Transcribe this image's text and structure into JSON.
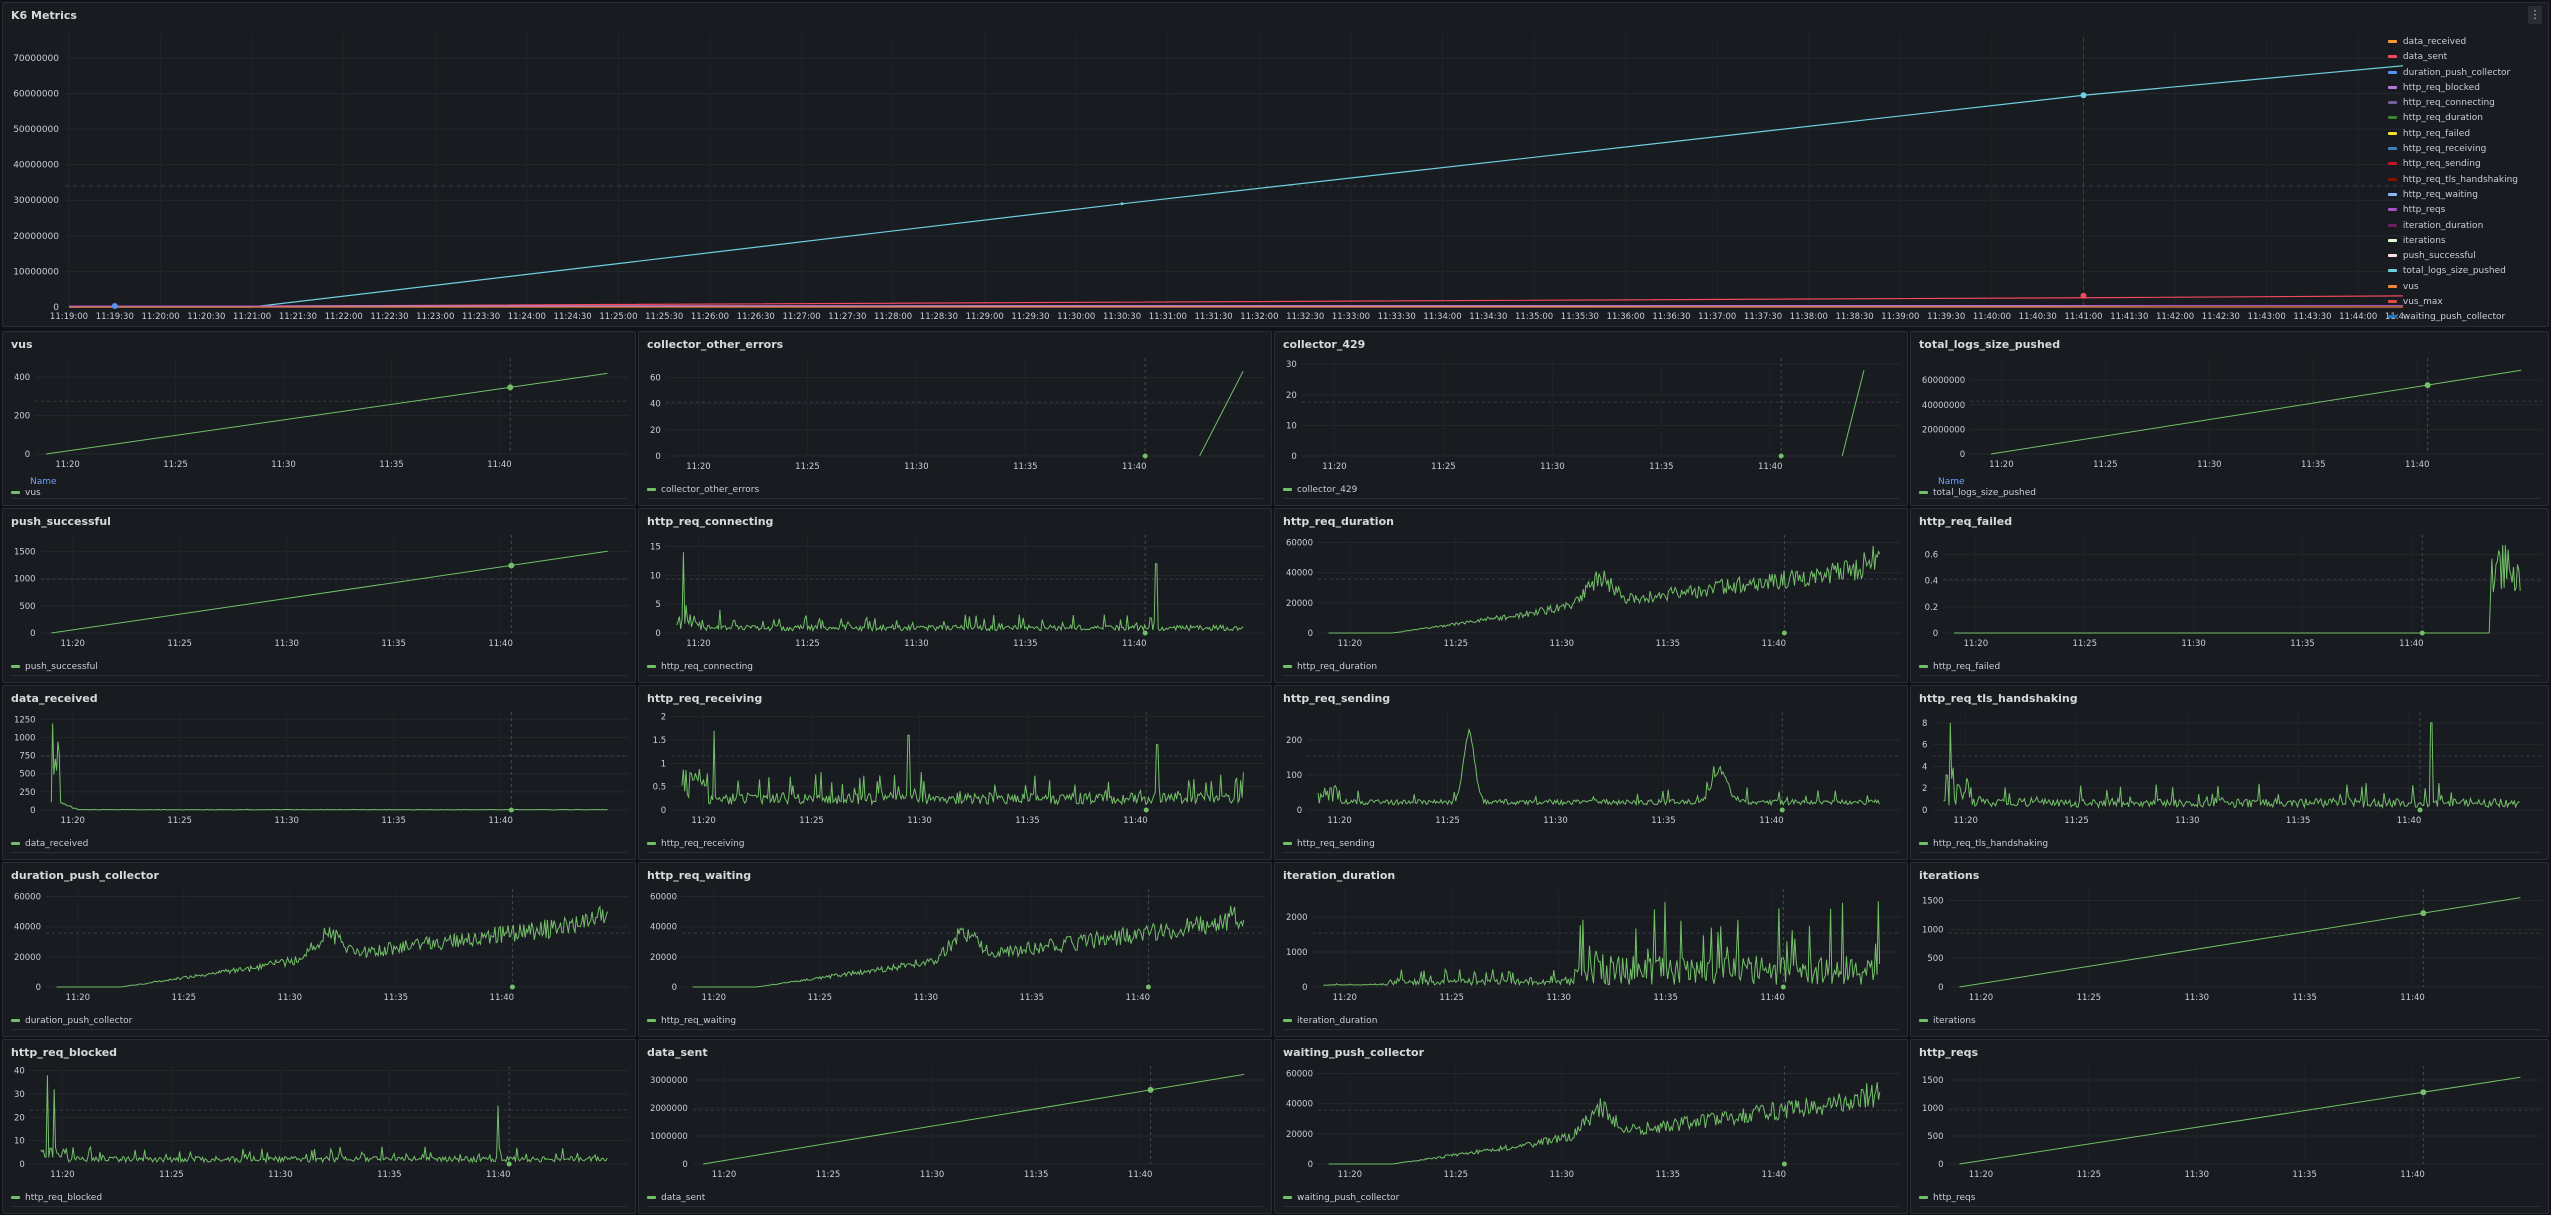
{
  "dashboard": {
    "main_panel": {
      "title": "K6 Metrics",
      "menu_icon": "ellipsis-vertical-icon",
      "legend": [
        {
          "name": "data_received",
          "color": "#ff9830"
        },
        {
          "name": "data_sent",
          "color": "#f2495c"
        },
        {
          "name": "duration_push_collector",
          "color": "#5794f2"
        },
        {
          "name": "http_req_blocked",
          "color": "#b877d9"
        },
        {
          "name": "http_req_connecting",
          "color": "#705da0"
        },
        {
          "name": "http_req_duration",
          "color": "#37872d"
        },
        {
          "name": "http_req_failed",
          "color": "#fade2a"
        },
        {
          "name": "http_req_receiving",
          "color": "#447ebc"
        },
        {
          "name": "http_req_sending",
          "color": "#c4162a"
        },
        {
          "name": "http_req_tls_handshaking",
          "color": "#890f02"
        },
        {
          "name": "http_req_waiting",
          "color": "#8ab8ff"
        },
        {
          "name": "http_reqs",
          "color": "#a352cc"
        },
        {
          "name": "iteration_duration",
          "color": "#6d1f62"
        },
        {
          "name": "iterations",
          "color": "#e0f9d7"
        },
        {
          "name": "push_successful",
          "color": "#fce2de"
        },
        {
          "name": "total_logs_size_pushed",
          "color": "#6ed0e0"
        },
        {
          "name": "vus",
          "color": "#ef843c"
        },
        {
          "name": "vus_max",
          "color": "#e24d42"
        },
        {
          "name": "waiting_push_collector",
          "color": "#1f78c1"
        }
      ]
    },
    "panels": [
      {
        "title": "vus",
        "legend": "vus",
        "show_name_header": true,
        "name_header": "Name"
      },
      {
        "title": "collector_other_errors",
        "legend": "collector_other_errors",
        "show_name_header": false
      },
      {
        "title": "collector_429",
        "legend": "collector_429",
        "show_name_header": false
      },
      {
        "title": "total_logs_size_pushed",
        "legend": "total_logs_size_pushed",
        "show_name_header": true,
        "name_header": "Name"
      },
      {
        "title": "push_successful",
        "legend": "push_successful"
      },
      {
        "title": "http_req_connecting",
        "legend": "http_req_connecting"
      },
      {
        "title": "http_req_duration",
        "legend": "http_req_duration"
      },
      {
        "title": "http_req_failed",
        "legend": "http_req_failed"
      },
      {
        "title": "data_received",
        "legend": "data_received"
      },
      {
        "title": "http_req_receiving",
        "legend": "http_req_receiving"
      },
      {
        "title": "http_req_sending",
        "legend": "http_req_sending"
      },
      {
        "title": "http_req_tls_handshaking",
        "legend": "http_req_tls_handshaking"
      },
      {
        "title": "duration_push_collector",
        "legend": "duration_push_collector"
      },
      {
        "title": "http_req_waiting",
        "legend": "http_req_waiting"
      },
      {
        "title": "iteration_duration",
        "legend": "iteration_duration"
      },
      {
        "title": "iterations",
        "legend": "iterations"
      },
      {
        "title": "http_req_blocked",
        "legend": "http_req_blocked"
      },
      {
        "title": "data_sent",
        "legend": "data_sent"
      },
      {
        "title": "waiting_push_collector",
        "legend": "waiting_push_collector"
      },
      {
        "title": "http_reqs",
        "legend": "http_reqs"
      }
    ]
  },
  "chart_data": [
    {
      "type": "line",
      "title": "K6 Metrics",
      "x_ticks": [
        "11:19:00",
        "11:19:30",
        "11:20:00",
        "11:20:30",
        "11:21:00",
        "11:21:30",
        "11:22:00",
        "11:22:30",
        "11:23:00",
        "11:23:30",
        "11:24:00",
        "11:24:30",
        "11:25:00",
        "11:25:30",
        "11:26:00",
        "11:26:30",
        "11:27:00",
        "11:27:30",
        "11:28:00",
        "11:28:30",
        "11:29:00",
        "11:29:30",
        "11:30:00",
        "11:30:30",
        "11:31:00",
        "11:31:30",
        "11:32:00",
        "11:32:30",
        "11:33:00",
        "11:33:30",
        "11:34:00",
        "11:34:30",
        "11:35:00",
        "11:35:30",
        "11:36:00",
        "11:36:30",
        "11:37:00",
        "11:37:30",
        "11:38:00",
        "11:38:30",
        "11:39:00",
        "11:39:30",
        "11:40:00",
        "11:40:30",
        "11:41:00",
        "11:41:30",
        "11:42:00",
        "11:42:30",
        "11:43:00",
        "11:43:30",
        "11:44:00",
        "11:44:30"
      ],
      "y_ticks": [
        "0",
        "10000000",
        "20000000",
        "30000000",
        "40000000",
        "50000000",
        "60000000",
        "70000000"
      ],
      "ylim": [
        0,
        77000000
      ],
      "grid": true,
      "legend_position": "right",
      "series": [
        {
          "name": "total_logs_size_pushed",
          "points": [
            [
              0,
              0
            ],
            [
              4,
              0
            ],
            [
              23,
              29000000
            ],
            [
              44,
              59500000
            ],
            [
              52,
              69000000
            ]
          ]
        },
        {
          "name": "data_sent",
          "points": [
            [
              0,
              0
            ],
            [
              44,
              2600000
            ],
            [
              52,
              3200000
            ]
          ]
        },
        {
          "name": "vus",
          "points": [
            [
              0,
              0
            ],
            [
              52,
              420
            ]
          ]
        }
      ]
    },
    {
      "type": "line",
      "title": "vus",
      "x_ticks": [
        "11:20",
        "11:25",
        "11:30",
        "11:35",
        "11:40"
      ],
      "y_ticks": [
        "0",
        "200",
        "400"
      ],
      "ylim": [
        0,
        500
      ],
      "shape": "linear",
      "x_range": [
        0,
        26
      ],
      "y_range": [
        0,
        420
      ],
      "marker_x": 21.5
    },
    {
      "type": "line",
      "title": "collector_other_errors",
      "x_ticks": [
        "11:20",
        "11:25",
        "11:30",
        "11:35",
        "11:40"
      ],
      "y_ticks": [
        "0",
        "20",
        "40",
        "60"
      ],
      "ylim": [
        0,
        75
      ],
      "shape": "late-linear",
      "x_range": [
        24,
        26
      ],
      "y_range": [
        0,
        65
      ],
      "marker_x": 21.5
    },
    {
      "type": "line",
      "title": "collector_429",
      "x_ticks": [
        "11:20",
        "11:25",
        "11:30",
        "11:35",
        "11:40"
      ],
      "y_ticks": [
        "0",
        "10",
        "20",
        "30"
      ],
      "ylim": [
        0,
        32
      ],
      "shape": "late-linear",
      "x_range": [
        24.3,
        25.3
      ],
      "y_range": [
        0,
        28
      ],
      "marker_x": 21.5
    },
    {
      "type": "line",
      "title": "total_logs_size_pushed",
      "x_ticks": [
        "11:20",
        "11:25",
        "11:30",
        "11:35",
        "11:40"
      ],
      "y_ticks": [
        "0",
        "20000000",
        "40000000",
        "60000000"
      ],
      "ylim": [
        0,
        78000000
      ],
      "shape": "linear",
      "x_range": [
        0.5,
        26
      ],
      "y_range": [
        0,
        68000000
      ],
      "marker_x": 21.5
    },
    {
      "type": "line",
      "title": "push_successful",
      "x_ticks": [
        "11:20",
        "11:25",
        "11:30",
        "11:35",
        "11:40"
      ],
      "y_ticks": [
        "0",
        "500",
        "1000",
        "1500"
      ],
      "ylim": [
        0,
        1800
      ],
      "shape": "linear",
      "x_range": [
        0,
        26
      ],
      "y_range": [
        0,
        1500
      ],
      "marker_x": 21.5
    },
    {
      "type": "line",
      "title": "http_req_connecting",
      "x_ticks": [
        "11:20",
        "11:25",
        "11:30",
        "11:35",
        "11:40"
      ],
      "y_ticks": [
        "0",
        "5",
        "10",
        "15"
      ],
      "ylim": [
        0,
        17
      ],
      "shape": "noise",
      "baseline": 1,
      "amp": 2,
      "spikes": [
        [
          0.3,
          14
        ],
        [
          22,
          12
        ],
        [
          2,
          4
        ]
      ],
      "marker_x": 21.5
    },
    {
      "type": "line",
      "title": "http_req_duration",
      "x_ticks": [
        "11:20",
        "11:25",
        "11:30",
        "11:35",
        "11:40"
      ],
      "y_ticks": [
        "0",
        "20000",
        "40000",
        "60000"
      ],
      "ylim": [
        0,
        65000
      ],
      "shape": "ramp-noise",
      "marker_x": 21.5
    },
    {
      "type": "line",
      "title": "http_req_failed",
      "x_ticks": [
        "11:20",
        "11:25",
        "11:30",
        "11:35",
        "11:40"
      ],
      "y_ticks": [
        "0",
        "0.2",
        "0.4",
        "0.6"
      ],
      "ylim": [
        0,
        0.75
      ],
      "shape": "late-burst",
      "marker_x": 21.5
    },
    {
      "type": "line",
      "title": "data_received",
      "x_ticks": [
        "11:20",
        "11:25",
        "11:30",
        "11:35",
        "11:40"
      ],
      "y_ticks": [
        "0",
        "250",
        "500",
        "750",
        "1000",
        "1250"
      ],
      "ylim": [
        0,
        1350
      ],
      "shape": "early-spike",
      "marker_x": 21.5
    },
    {
      "type": "line",
      "title": "http_req_receiving",
      "x_ticks": [
        "11:20",
        "11:25",
        "11:30",
        "11:35",
        "11:40"
      ],
      "y_ticks": [
        "0",
        "0.5",
        "1",
        "1.5",
        "2"
      ],
      "ylim": [
        0,
        2.1
      ],
      "shape": "noise",
      "baseline": 0.3,
      "amp": 0.5,
      "spikes": [
        [
          1.5,
          1.7
        ],
        [
          10.5,
          1.6
        ],
        [
          22,
          1.4
        ]
      ],
      "marker_x": 21.5
    },
    {
      "type": "line",
      "title": "http_req_sending",
      "x_ticks": [
        "11:20",
        "11:25",
        "11:30",
        "11:35",
        "11:40"
      ],
      "y_ticks": [
        "0",
        "100",
        "200"
      ],
      "ylim": [
        0,
        280
      ],
      "shape": "sending",
      "marker_x": 21.5
    },
    {
      "type": "line",
      "title": "http_req_tls_handshaking",
      "x_ticks": [
        "11:20",
        "11:25",
        "11:30",
        "11:35",
        "11:40"
      ],
      "y_ticks": [
        "0",
        "2",
        "4",
        "6",
        "8"
      ],
      "ylim": [
        0,
        9
      ],
      "shape": "noise",
      "baseline": 0.6,
      "amp": 1.6,
      "spikes": [
        [
          0.3,
          8
        ],
        [
          22,
          8
        ]
      ],
      "marker_x": 21.5
    },
    {
      "type": "line",
      "title": "duration_push_collector",
      "x_ticks": [
        "11:20",
        "11:25",
        "11:30",
        "11:35",
        "11:40"
      ],
      "y_ticks": [
        "0",
        "20000",
        "40000",
        "60000"
      ],
      "ylim": [
        0,
        65000
      ],
      "shape": "ramp-noise",
      "marker_x": 21.5
    },
    {
      "type": "line",
      "title": "http_req_waiting",
      "x_ticks": [
        "11:20",
        "11:25",
        "11:30",
        "11:35",
        "11:40"
      ],
      "y_ticks": [
        "0",
        "20000",
        "40000",
        "60000"
      ],
      "ylim": [
        0,
        65000
      ],
      "shape": "ramp-noise",
      "marker_x": 21.5
    },
    {
      "type": "line",
      "title": "iteration_duration",
      "x_ticks": [
        "11:20",
        "11:25",
        "11:30",
        "11:35",
        "11:40"
      ],
      "y_ticks": [
        "0",
        "1000",
        "2000"
      ],
      "ylim": [
        0,
        2800
      ],
      "shape": "iter-noise",
      "marker_x": 21.5
    },
    {
      "type": "line",
      "title": "iterations",
      "x_ticks": [
        "11:20",
        "11:25",
        "11:30",
        "11:35",
        "11:40"
      ],
      "y_ticks": [
        "0",
        "500",
        "1000",
        "1500"
      ],
      "ylim": [
        0,
        1700
      ],
      "shape": "linear",
      "x_range": [
        0,
        26
      ],
      "y_range": [
        0,
        1550
      ],
      "marker_x": 21.5
    },
    {
      "type": "line",
      "title": "http_req_blocked",
      "x_ticks": [
        "11:20",
        "11:25",
        "11:30",
        "11:35",
        "11:40"
      ],
      "y_ticks": [
        "0",
        "10",
        "20",
        "30",
        "40"
      ],
      "ylim": [
        0,
        42
      ],
      "shape": "noise",
      "baseline": 2,
      "amp": 5,
      "spikes": [
        [
          0.3,
          38
        ],
        [
          0.6,
          32
        ],
        [
          21,
          25
        ]
      ],
      "marker_x": 21.5
    },
    {
      "type": "line",
      "title": "data_sent",
      "x_ticks": [
        "11:20",
        "11:25",
        "11:30",
        "11:35",
        "11:40"
      ],
      "y_ticks": [
        "0",
        "1000000",
        "2000000",
        "3000000"
      ],
      "ylim": [
        0,
        3500000
      ],
      "shape": "linear",
      "x_range": [
        0,
        26
      ],
      "y_range": [
        0,
        3200000
      ],
      "marker_x": 21.5
    },
    {
      "type": "line",
      "title": "waiting_push_collector",
      "x_ticks": [
        "11:20",
        "11:25",
        "11:30",
        "11:35",
        "11:40"
      ],
      "y_ticks": [
        "0",
        "20000",
        "40000",
        "60000"
      ],
      "ylim": [
        0,
        65000
      ],
      "shape": "ramp-noise",
      "marker_x": 21.5
    },
    {
      "type": "line",
      "title": "http_reqs",
      "x_ticks": [
        "11:20",
        "11:25",
        "11:30",
        "11:35",
        "11:40"
      ],
      "y_ticks": [
        "0",
        "500",
        "1000",
        "1500"
      ],
      "ylim": [
        0,
        1750
      ],
      "shape": "linear",
      "x_range": [
        0,
        26
      ],
      "y_range": [
        0,
        1550
      ],
      "marker_x": 21.5
    }
  ]
}
